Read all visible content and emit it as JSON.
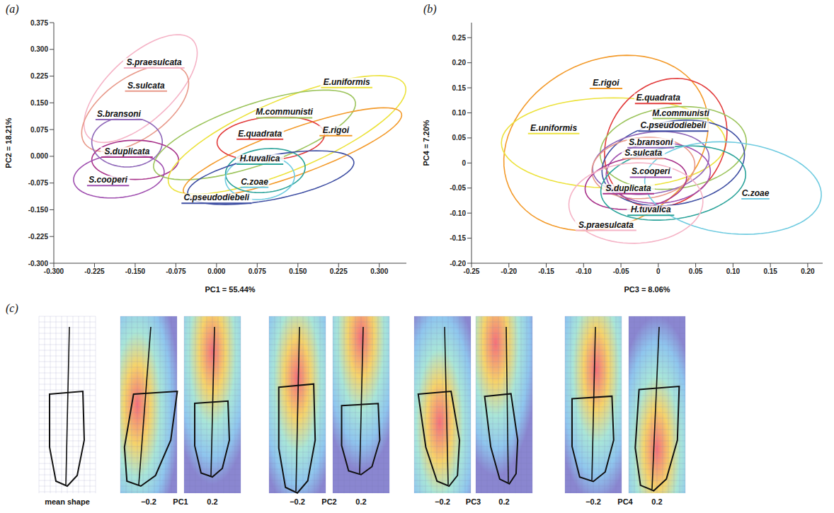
{
  "chart_data": [
    {
      "type": "scatter",
      "panel_label": "(a)",
      "x_label": "PC1 = 55.44%",
      "y_label": "PC2 = 18.21%",
      "xlim": [
        -0.3,
        0.35
      ],
      "ylim": [
        -0.3,
        0.375
      ],
      "xticks": [
        {
          "value": -0.3,
          "label": "-0.300"
        },
        -0.225,
        {
          "value": -0.15,
          "label": "-0.150"
        },
        -0.075,
        {
          "value": 0,
          "label": "0.000"
        },
        0.075,
        {
          "value": 0.15,
          "label": "0.150"
        },
        0.225,
        {
          "value": 0.3,
          "label": "0.300"
        }
      ],
      "yticks": [
        {
          "value": -0.3,
          "label": "-0.300"
        },
        -0.225,
        {
          "value": -0.15,
          "label": "-0.150"
        },
        -0.075,
        {
          "value": 0,
          "label": "0.000"
        },
        0.075,
        {
          "value": 0.15,
          "label": "0.150"
        },
        0.225,
        {
          "value": 0.3,
          "label": "0.300"
        },
        0.375
      ],
      "grid": false,
      "series": [
        {
          "name": "S.praesulcata",
          "color": "#f5b3c6",
          "ellipse": {
            "cx": -0.14,
            "cy": 0.19,
            "a": 0.17,
            "b": 0.07,
            "angle": 60
          },
          "label_at": [
            -0.115,
            0.25
          ]
        },
        {
          "name": "S.sulcata",
          "color": "#e8998a",
          "ellipse": {
            "cx": -0.15,
            "cy": 0.135,
            "a": 0.14,
            "b": 0.07,
            "angle": 55
          },
          "label_at": [
            -0.13,
            0.185
          ]
        },
        {
          "name": "S.bransoni",
          "color": "#8e66b8",
          "ellipse": {
            "cx": -0.165,
            "cy": 0.04,
            "a": 0.07,
            "b": 0.065,
            "angle": 90
          },
          "label_at": [
            -0.18,
            0.105
          ]
        },
        {
          "name": "S.duplicata",
          "color": "#a8328a",
          "ellipse": {
            "cx": -0.15,
            "cy": -0.01,
            "a": 0.08,
            "b": 0.055,
            "angle": 0
          },
          "label_at": [
            -0.165,
            0.0
          ]
        },
        {
          "name": "S.cooperi",
          "color": "#a050b0",
          "ellipse": {
            "cx": -0.18,
            "cy": -0.055,
            "a": 0.085,
            "b": 0.06,
            "angle": 15
          },
          "label_at": [
            -0.2,
            -0.08
          ]
        },
        {
          "name": "E.uniformis",
          "color": "#ece23c",
          "ellipse": {
            "cx": 0.13,
            "cy": 0.06,
            "a": 0.26,
            "b": 0.09,
            "angle": 35
          },
          "label_at": [
            0.24,
            0.195
          ]
        },
        {
          "name": "M.communisti",
          "color": "#9cc45c",
          "ellipse": {
            "cx": 0.07,
            "cy": 0.06,
            "a": 0.21,
            "b": 0.08,
            "angle": 30
          },
          "label_at": [
            0.125,
            0.11
          ]
        },
        {
          "name": "E.rigoi",
          "color": "#f39a2a",
          "ellipse": {
            "cx": 0.14,
            "cy": 0.01,
            "a": 0.23,
            "b": 0.06,
            "angle": 30
          },
          "label_at": [
            0.22,
            0.06
          ]
        },
        {
          "name": "E.quadrata",
          "color": "#e23b3b",
          "ellipse": {
            "cx": 0.1,
            "cy": 0.05,
            "a": 0.1,
            "b": 0.06,
            "angle": 10
          },
          "label_at": [
            0.08,
            0.05
          ]
        },
        {
          "name": "H.tuvalica",
          "color": "#2aa39a",
          "ellipse": {
            "cx": 0.09,
            "cy": -0.04,
            "a": 0.075,
            "b": 0.06,
            "angle": 20
          },
          "label_at": [
            0.08,
            -0.02
          ]
        },
        {
          "name": "C.zoae",
          "color": "#6fcbe0",
          "ellipse": {
            "cx": 0.08,
            "cy": -0.06,
            "a": 0.065,
            "b": 0.06,
            "angle": 30
          },
          "label_at": [
            0.07,
            -0.085
          ]
        },
        {
          "name": "C.pseudodiebeli",
          "color": "#3f4fa3",
          "ellipse": {
            "cx": 0.1,
            "cy": -0.06,
            "a": 0.16,
            "b": 0.06,
            "angle": 18
          },
          "label_at": [
            0.0,
            -0.13
          ]
        }
      ]
    },
    {
      "type": "scatter",
      "panel_label": "(b)",
      "x_label": "PC3 = 8.06%",
      "y_label": "PC4 = 7.20%",
      "xlim": [
        -0.25,
        0.22
      ],
      "ylim": [
        -0.2,
        0.28
      ],
      "xticks": [
        -0.25,
        {
          "value": -0.2,
          "label": "-0.20"
        },
        -0.15,
        {
          "value": -0.1,
          "label": "-0.10"
        },
        -0.05,
        0,
        0.05,
        {
          "value": 0.1,
          "label": "0.10"
        },
        0.15,
        {
          "value": 0.2,
          "label": "0.20"
        }
      ],
      "yticks": [
        {
          "value": -0.2,
          "label": "-0.20"
        },
        -0.15,
        {
          "value": -0.1,
          "label": "-0.10"
        },
        -0.05,
        0,
        0.05,
        {
          "value": 0.1,
          "label": "0.10"
        },
        0.15,
        {
          "value": 0.2,
          "label": "0.20"
        },
        0.25
      ],
      "grid": false,
      "series": [
        {
          "name": "E.rigoi",
          "color": "#f39a2a",
          "ellipse": {
            "cx": -0.07,
            "cy": 0.04,
            "a": 0.18,
            "b": 0.13,
            "angle": 70
          },
          "label_at": [
            -0.07,
            0.15
          ]
        },
        {
          "name": "E.uniformis",
          "color": "#ece23c",
          "ellipse": {
            "cx": -0.06,
            "cy": 0.04,
            "a": 0.15,
            "b": 0.09,
            "angle": 0
          },
          "label_at": [
            -0.14,
            0.06
          ]
        },
        {
          "name": "E.quadrata",
          "color": "#e23b3b",
          "ellipse": {
            "cx": 0.01,
            "cy": 0.04,
            "a": 0.13,
            "b": 0.08,
            "angle": 80
          },
          "label_at": [
            0.0,
            0.12
          ]
        },
        {
          "name": "M.communisti",
          "color": "#9cc45c",
          "ellipse": {
            "cx": 0.02,
            "cy": 0.03,
            "a": 0.1,
            "b": 0.08,
            "angle": 20
          },
          "label_at": [
            0.03,
            0.09
          ]
        },
        {
          "name": "C.pseudodiebeli",
          "color": "#3f4fa3",
          "ellipse": {
            "cx": 0.02,
            "cy": 0.0,
            "a": 0.1,
            "b": 0.08,
            "angle": 30
          },
          "label_at": [
            0.02,
            0.065
          ]
        },
        {
          "name": "S.bransoni",
          "color": "#8e66b8",
          "ellipse": {
            "cx": -0.01,
            "cy": 0.0,
            "a": 0.08,
            "b": 0.06,
            "angle": 20
          },
          "label_at": [
            -0.01,
            0.032
          ]
        },
        {
          "name": "S.sulcata",
          "color": "#e8998a",
          "ellipse": {
            "cx": -0.02,
            "cy": -0.01,
            "a": 0.07,
            "b": 0.06,
            "angle": 20
          },
          "label_at": [
            -0.02,
            0.01
          ]
        },
        {
          "name": "S.cooperi",
          "color": "#a050b0",
          "ellipse": {
            "cx": 0.0,
            "cy": -0.02,
            "a": 0.07,
            "b": 0.06,
            "angle": 10
          },
          "label_at": [
            -0.01,
            -0.027
          ]
        },
        {
          "name": "S.duplicata",
          "color": "#a8328a",
          "ellipse": {
            "cx": -0.03,
            "cy": -0.04,
            "a": 0.07,
            "b": 0.05,
            "angle": 20
          },
          "label_at": [
            -0.04,
            -0.06
          ]
        },
        {
          "name": "H.tuvalica",
          "color": "#2aa39a",
          "ellipse": {
            "cx": 0.02,
            "cy": -0.04,
            "a": 0.1,
            "b": 0.07,
            "angle": 20
          },
          "label_at": [
            -0.01,
            -0.103
          ]
        },
        {
          "name": "C.zoae",
          "color": "#6fcbe0",
          "ellipse": {
            "cx": 0.1,
            "cy": -0.05,
            "a": 0.12,
            "b": 0.09,
            "angle": -15
          },
          "label_at": [
            0.13,
            -0.07
          ]
        },
        {
          "name": "S.praesulcata",
          "color": "#f5b3c6",
          "ellipse": {
            "cx": -0.03,
            "cy": -0.08,
            "a": 0.09,
            "b": 0.08,
            "angle": 10
          },
          "label_at": [
            -0.07,
            -0.133
          ]
        }
      ]
    }
  ],
  "figure_c": {
    "panel_label": "(c)",
    "mean_label": "mean shape",
    "components": [
      {
        "name": "PC1",
        "low": "−0.2",
        "high": "0.2"
      },
      {
        "name": "PC2",
        "low": "−0.2",
        "high": "0.2"
      },
      {
        "name": "PC3",
        "low": "−0.2",
        "high": "0.2"
      },
      {
        "name": "PC4",
        "low": "−0.2",
        "high": "0.2"
      }
    ]
  }
}
